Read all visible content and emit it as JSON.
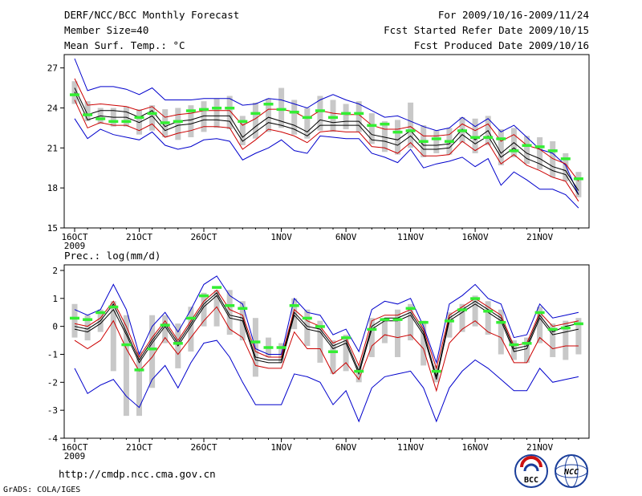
{
  "header": {
    "title": "DERF/NCC/BCC Monthly Forecast",
    "member_size": "Member Size=40",
    "variable": "Mean Surf. Temp.: °C",
    "forecast_period": "For 2009/10/16-2009/11/24",
    "refer_date": "Fcst Started Refer Date 2009/10/15",
    "produced_date": "Fcst Produced Date 2009/10/16"
  },
  "footer": {
    "url": "http://cmdp.ncc.cma.gov.cn",
    "credit": "GrADS: COLA/IGES",
    "logo_bcc": "BCC",
    "logo_ncc": "NCC"
  },
  "colors": {
    "envelope": "#0000cc",
    "spread": "#cc0000",
    "mean": "#000000",
    "box": "#c8c8c8",
    "obs": "#33ee33"
  },
  "chart_data": [
    {
      "type": "line",
      "title": "Mean Surf. Temp.: °C",
      "x_tick_labels": [
        "16OCT",
        "21OCT",
        "26OCT",
        "1NOV",
        "6NOV",
        "11NOV",
        "16NOV",
        "21NOV"
      ],
      "x_tick_days": [
        1,
        6,
        11,
        17,
        22,
        27,
        32,
        37
      ],
      "x_year_label": "2009",
      "ylim": [
        15,
        28
      ],
      "y_ticks": [
        15,
        18,
        21,
        24,
        27
      ],
      "days": [
        1,
        2,
        3,
        4,
        5,
        6,
        7,
        8,
        9,
        10,
        11,
        12,
        13,
        14,
        15,
        16,
        17,
        18,
        19,
        20,
        21,
        22,
        23,
        24,
        25,
        26,
        27,
        28,
        29,
        30,
        31,
        32,
        33,
        34,
        35,
        36,
        37,
        38,
        39,
        40
      ],
      "series": [
        {
          "name": "max",
          "values": [
            27.7,
            25.3,
            25.6,
            25.6,
            25.4,
            25.0,
            25.5,
            24.6,
            24.6,
            24.6,
            24.7,
            24.7,
            24.7,
            24.2,
            24.3,
            24.7,
            24.6,
            24.3,
            24.0,
            24.6,
            25.0,
            24.6,
            24.3,
            23.8,
            23.3,
            23.4,
            23.0,
            22.6,
            22.3,
            22.5,
            23.3,
            22.6,
            23.2,
            22.2,
            22.7,
            21.8,
            20.9,
            20.6,
            19.7,
            17.5
          ]
        },
        {
          "name": "upper",
          "values": [
            26.2,
            24.2,
            24.3,
            24.2,
            24.1,
            23.8,
            24.1,
            23.3,
            23.5,
            23.6,
            23.8,
            23.8,
            23.8,
            22.7,
            23.2,
            23.9,
            23.9,
            23.7,
            23.2,
            23.8,
            23.6,
            23.5,
            23.5,
            22.7,
            22.4,
            22.4,
            22.6,
            21.9,
            21.9,
            22.0,
            22.8,
            22.3,
            22.8,
            21.5,
            22.0,
            21.2,
            20.9,
            20.2,
            19.8,
            18.5
          ]
        },
        {
          "name": "mean",
          "values": [
            25.5,
            23.5,
            23.8,
            23.8,
            23.7,
            23.3,
            23.8,
            22.6,
            23.0,
            23.1,
            23.4,
            23.4,
            23.4,
            21.8,
            22.6,
            23.3,
            23.0,
            22.7,
            22.2,
            23.1,
            22.9,
            23.0,
            23.0,
            22.0,
            21.8,
            21.6,
            22.3,
            21.2,
            21.2,
            21.3,
            22.4,
            21.6,
            22.3,
            20.6,
            21.4,
            20.6,
            20.2,
            19.6,
            19.3,
            17.8
          ]
        },
        {
          "name": "lower",
          "values": [
            25.2,
            23.1,
            23.4,
            23.3,
            23.3,
            22.9,
            23.4,
            22.3,
            22.7,
            22.8,
            23.1,
            23.1,
            23.0,
            21.5,
            22.2,
            22.9,
            22.7,
            22.4,
            21.9,
            22.7,
            22.7,
            22.7,
            22.7,
            21.6,
            21.5,
            21.2,
            21.9,
            20.9,
            20.9,
            21.0,
            22.0,
            21.3,
            21.9,
            20.3,
            21.0,
            20.2,
            19.8,
            19.3,
            19.0,
            17.5
          ]
        },
        {
          "name": "lower_spread",
          "values": [
            24.6,
            22.5,
            22.9,
            22.7,
            22.7,
            22.3,
            22.8,
            21.8,
            22.1,
            22.3,
            22.6,
            22.6,
            22.5,
            20.9,
            21.6,
            22.4,
            22.2,
            21.9,
            21.4,
            22.2,
            22.3,
            22.2,
            22.2,
            21.1,
            21.0,
            20.6,
            21.4,
            20.4,
            20.4,
            20.5,
            21.5,
            20.8,
            21.4,
            19.8,
            20.5,
            19.7,
            19.3,
            18.8,
            18.5,
            17.0
          ]
        },
        {
          "name": "min",
          "values": [
            23.2,
            21.7,
            22.4,
            22.0,
            21.8,
            21.6,
            22.2,
            21.2,
            20.9,
            21.1,
            21.6,
            21.7,
            21.5,
            20.1,
            20.6,
            21.0,
            21.6,
            20.8,
            20.6,
            21.9,
            21.8,
            21.7,
            21.7,
            20.6,
            20.3,
            19.9,
            20.9,
            19.5,
            19.8,
            20.0,
            20.3,
            19.6,
            20.2,
            18.2,
            19.2,
            18.6,
            17.9,
            17.9,
            17.5,
            16.5
          ]
        }
      ],
      "boxes": [
        [
          24.3,
          26.0
        ],
        [
          23.0,
          24.5
        ],
        [
          22.8,
          24.0
        ],
        [
          22.6,
          24.0
        ],
        [
          22.6,
          24.1
        ],
        [
          22.0,
          23.9
        ],
        [
          22.3,
          24.2
        ],
        [
          21.8,
          23.9
        ],
        [
          21.6,
          24.0
        ],
        [
          21.8,
          24.2
        ],
        [
          22.2,
          24.5
        ],
        [
          22.5,
          24.7
        ],
        [
          22.4,
          24.9
        ],
        [
          21.2,
          23.4
        ],
        [
          21.7,
          24.4
        ],
        [
          22.2,
          24.7
        ],
        [
          22.5,
          25.5
        ],
        [
          22.0,
          24.6
        ],
        [
          21.7,
          24.0
        ],
        [
          22.3,
          24.9
        ],
        [
          22.2,
          24.6
        ],
        [
          22.4,
          24.3
        ],
        [
          22.2,
          24.5
        ],
        [
          21.3,
          23.6
        ],
        [
          20.7,
          23.0
        ],
        [
          20.5,
          23.1
        ],
        [
          21.0,
          24.4
        ],
        [
          20.3,
          22.7
        ],
        [
          20.6,
          22.3
        ],
        [
          20.5,
          22.5
        ],
        [
          21.4,
          23.3
        ],
        [
          20.6,
          23.2
        ],
        [
          21.2,
          23.4
        ],
        [
          19.7,
          22.4
        ],
        [
          20.3,
          22.5
        ],
        [
          19.8,
          21.9
        ],
        [
          19.4,
          21.8
        ],
        [
          18.8,
          21.5
        ],
        [
          18.5,
          20.6
        ],
        [
          17.3,
          19.2
        ]
      ],
      "obs": [
        25.0,
        23.5,
        23.2,
        23.0,
        23.0,
        23.3,
        23.6,
        22.9,
        23.0,
        23.8,
        23.9,
        24.0,
        24.0,
        23.0,
        23.6,
        24.3,
        23.9,
        23.7,
        23.3,
        23.8,
        23.3,
        23.6,
        23.6,
        22.7,
        22.8,
        22.2,
        22.3,
        21.5,
        21.7,
        21.5,
        22.3,
        21.8,
        21.8,
        21.7,
        20.8,
        21.2,
        21.1,
        20.8,
        20.2,
        18.7
      ]
    },
    {
      "type": "line",
      "title": "Prec.: log(mm/d)",
      "x_tick_labels": [
        "16OCT",
        "21OCT",
        "26OCT",
        "1NOV",
        "6NOV",
        "11NOV",
        "16NOV",
        "21NOV"
      ],
      "x_tick_days": [
        1,
        6,
        11,
        17,
        22,
        27,
        32,
        37
      ],
      "x_year_label": "2009",
      "ylim": [
        -4,
        2.2
      ],
      "y_ticks": [
        -4,
        -3,
        -2,
        -1,
        0,
        1,
        2
      ],
      "days": [
        1,
        2,
        3,
        4,
        5,
        6,
        7,
        8,
        9,
        10,
        11,
        12,
        13,
        14,
        15,
        16,
        17,
        18,
        19,
        20,
        21,
        22,
        23,
        24,
        25,
        26,
        27,
        28,
        29,
        30,
        31,
        32,
        33,
        34,
        35,
        36,
        37,
        38,
        39,
        40
      ],
      "series": [
        {
          "name": "max",
          "values": [
            0.6,
            0.4,
            0.6,
            1.5,
            0.6,
            -1.0,
            0.0,
            0.5,
            -0.2,
            0.6,
            1.5,
            1.8,
            1.1,
            0.8,
            -0.8,
            -1.0,
            -1.0,
            1.0,
            0.5,
            0.4,
            -0.3,
            -0.1,
            -0.9,
            0.6,
            0.9,
            0.8,
            1.0,
            0.0,
            -1.3,
            0.8,
            1.1,
            1.5,
            1.0,
            0.8,
            -0.4,
            -0.3,
            0.8,
            0.3,
            0.4,
            0.5
          ]
        },
        {
          "name": "upper",
          "values": [
            0.1,
            0.0,
            0.3,
            0.9,
            0.0,
            -1.1,
            -0.4,
            0.2,
            -0.5,
            0.2,
            0.9,
            1.3,
            0.6,
            0.4,
            -0.9,
            -1.1,
            -1.1,
            0.6,
            0.2,
            0.0,
            -0.6,
            -0.4,
            -1.4,
            0.2,
            0.4,
            0.4,
            0.6,
            -0.1,
            -1.5,
            0.4,
            0.7,
            1.0,
            0.7,
            0.4,
            -0.7,
            -0.6,
            0.5,
            0.0,
            0.1,
            0.2
          ]
        },
        {
          "name": "mean",
          "values": [
            0.0,
            -0.1,
            0.2,
            0.8,
            -0.2,
            -1.2,
            -0.5,
            0.1,
            -0.6,
            0.1,
            0.8,
            1.2,
            0.4,
            0.3,
            -1.1,
            -1.2,
            -1.2,
            0.5,
            0.0,
            -0.1,
            -0.7,
            -0.5,
            -1.6,
            0.0,
            0.3,
            0.3,
            0.5,
            -0.2,
            -1.8,
            0.3,
            0.6,
            0.9,
            0.6,
            0.3,
            -0.8,
            -0.7,
            0.4,
            -0.2,
            0.0,
            0.1
          ]
        },
        {
          "name": "lower",
          "values": [
            -0.1,
            -0.2,
            0.1,
            0.6,
            -0.3,
            -1.3,
            -0.6,
            0.0,
            -0.7,
            0.0,
            0.7,
            1.1,
            0.3,
            0.2,
            -1.2,
            -1.3,
            -1.3,
            0.4,
            -0.1,
            -0.2,
            -0.8,
            -0.6,
            -1.7,
            -0.1,
            0.2,
            0.2,
            0.4,
            -0.3,
            -1.9,
            0.2,
            0.5,
            0.8,
            0.5,
            0.2,
            -0.9,
            -0.8,
            0.3,
            -0.3,
            -0.2,
            -0.1
          ]
        },
        {
          "name": "lower_spread",
          "values": [
            -0.5,
            -0.8,
            -0.5,
            0.2,
            -0.8,
            -1.6,
            -1.1,
            -0.4,
            -1.0,
            -0.4,
            0.2,
            0.7,
            -0.1,
            -0.4,
            -1.4,
            -1.5,
            -1.5,
            -0.2,
            -0.8,
            -0.8,
            -1.7,
            -1.3,
            -1.9,
            -0.7,
            -0.3,
            -0.4,
            -0.3,
            -0.8,
            -2.3,
            -0.6,
            -0.1,
            0.2,
            -0.2,
            -0.4,
            -1.3,
            -1.3,
            -0.4,
            -0.8,
            -0.7,
            -0.7
          ]
        },
        {
          "name": "min",
          "values": [
            -1.5,
            -2.4,
            -2.1,
            -1.9,
            -2.5,
            -2.9,
            -1.9,
            -1.4,
            -2.2,
            -1.3,
            -0.6,
            -0.5,
            -1.1,
            -2.0,
            -2.8,
            -2.8,
            -2.8,
            -1.7,
            -1.8,
            -2.0,
            -2.8,
            -2.3,
            -3.4,
            -2.2,
            -1.8,
            -1.7,
            -1.6,
            -2.2,
            -3.4,
            -2.2,
            -1.6,
            -1.2,
            -1.5,
            -1.9,
            -2.3,
            -2.3,
            -1.5,
            -2.0,
            -1.9,
            -1.8
          ]
        }
      ],
      "boxes": [
        [
          -0.4,
          0.8
        ],
        [
          -0.5,
          0.4
        ],
        [
          -0.2,
          0.6
        ],
        [
          -1.6,
          0.9
        ],
        [
          -3.2,
          0.4
        ],
        [
          -3.2,
          -0.9
        ],
        [
          -2.2,
          0.4
        ],
        [
          -0.6,
          0.4
        ],
        [
          -1.5,
          0.1
        ],
        [
          -0.9,
          0.7
        ],
        [
          0.0,
          1.2
        ],
        [
          0.0,
          1.3
        ],
        [
          -0.3,
          1.3
        ],
        [
          -0.5,
          0.9
        ],
        [
          -1.8,
          0.3
        ],
        [
          -1.1,
          -0.4
        ],
        [
          -1.3,
          -0.6
        ],
        [
          -0.1,
          1.0
        ],
        [
          -0.7,
          0.6
        ],
        [
          -1.3,
          0.2
        ],
        [
          -1.7,
          -0.5
        ],
        [
          -1.6,
          -0.3
        ],
        [
          -2.0,
          -1.4
        ],
        [
          -1.1,
          0.3
        ],
        [
          -0.6,
          0.3
        ],
        [
          -1.1,
          0.6
        ],
        [
          -0.5,
          0.8
        ],
        [
          -1.4,
          0.2
        ],
        [
          -2.0,
          -1.4
        ],
        [
          -0.4,
          0.5
        ],
        [
          -0.2,
          0.8
        ],
        [
          0.0,
          1.1
        ],
        [
          -0.3,
          0.9
        ],
        [
          -1.0,
          0.6
        ],
        [
          -1.2,
          -0.5
        ],
        [
          -1.3,
          -0.4
        ],
        [
          -0.6,
          0.7
        ],
        [
          -1.1,
          0.1
        ],
        [
          -1.2,
          0.2
        ],
        [
          -1.0,
          0.3
        ]
      ],
      "obs": [
        0.3,
        0.25,
        0.5,
        0.7,
        -0.65,
        -1.55,
        -0.8,
        0.05,
        -0.6,
        0.3,
        1.1,
        1.4,
        0.75,
        0.65,
        -0.55,
        -0.75,
        -0.75,
        0.75,
        0.3,
        0.0,
        -0.9,
        -0.4,
        -1.6,
        -0.1,
        0.25,
        0.25,
        0.65,
        0.15,
        -1.6,
        0.2,
        0.6,
        1.0,
        0.55,
        0.15,
        -0.65,
        -0.6,
        0.5,
        -0.1,
        -0.05,
        0.1
      ]
    }
  ]
}
